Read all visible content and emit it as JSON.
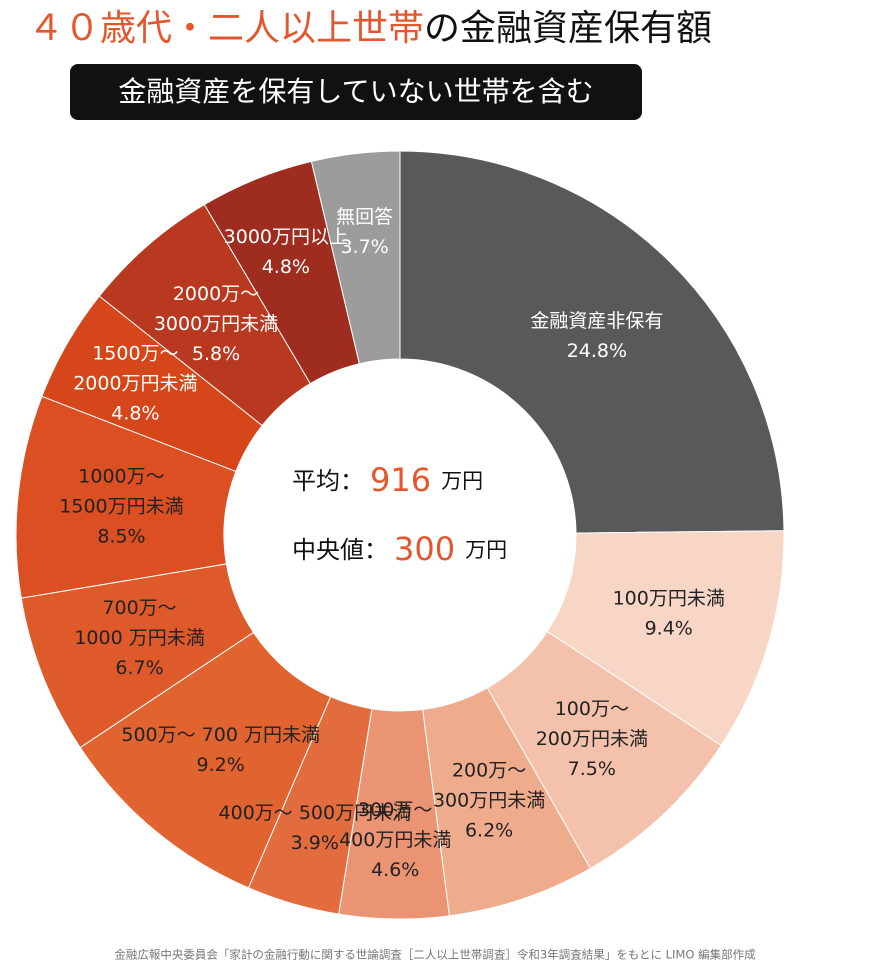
{
  "chart_data": {
    "type": "donut",
    "title_parts": [
      "４０歳代・二人以上世帯",
      "の金融資産保有額"
    ],
    "title_colors": [
      "#e4572e",
      "#111111"
    ],
    "subtitle": "金融資産を保有していない世帯を含む",
    "categories": [
      [
        "金融資産非保有"
      ],
      [
        "100万円未満"
      ],
      [
        "100万～",
        "200万円未満"
      ],
      [
        "200万～",
        "300万円未満"
      ],
      [
        "300万～",
        "400万円未満"
      ],
      [
        "400万～ 500万円未満"
      ],
      [
        "500万～ 700 万円未満"
      ],
      [
        "700万～",
        "1000 万円未満"
      ],
      [
        "1000万～",
        "1500万円未満"
      ],
      [
        "1500万～",
        "2000万円未満"
      ],
      [
        "2000万～",
        "3000万円未満"
      ],
      [
        "3000万円以上"
      ],
      [
        "無回答"
      ]
    ],
    "values": [
      24.8,
      9.4,
      7.5,
      6.2,
      4.6,
      3.9,
      9.2,
      6.7,
      8.5,
      4.8,
      5.8,
      4.8,
      3.7
    ],
    "value_labels": [
      "24.8%",
      "9.4%",
      "7.5%",
      "6.2%",
      "4.6%",
      "3.9%",
      "9.2%",
      "6.7%",
      "8.5%",
      "4.8%",
      "5.8%",
      "4.8%",
      "3.7%"
    ],
    "colors": [
      "#58595b",
      "#f8d6c6",
      "#f4c2ac",
      "#efac8d",
      "#ea9473",
      "#e36c3f",
      "#e1632f",
      "#de5a2a",
      "#db4f22",
      "#d6461b",
      "#b8391f",
      "#9e2d1f",
      "#9c9c9c"
    ],
    "text_colors": [
      "#ffffff",
      "#222222",
      "#222222",
      "#222222",
      "#222222",
      "#222222",
      "#222222",
      "#222222",
      "#222222",
      "#ffffff",
      "#ffffff",
      "#ffffff",
      "#ffffff"
    ],
    "center": {
      "mean_label": "平均：",
      "mean_value": 916,
      "mean_unit": "万円",
      "median_label": "中央値：",
      "median_value": 300,
      "median_unit": "万円",
      "value_color": "#e4572e"
    },
    "source": "金融広報中央委員会「家計の金融行動に関する世論調査［二人以上世帯調査］令和3年調査結果」をもとに LIMO 編集部作成"
  }
}
